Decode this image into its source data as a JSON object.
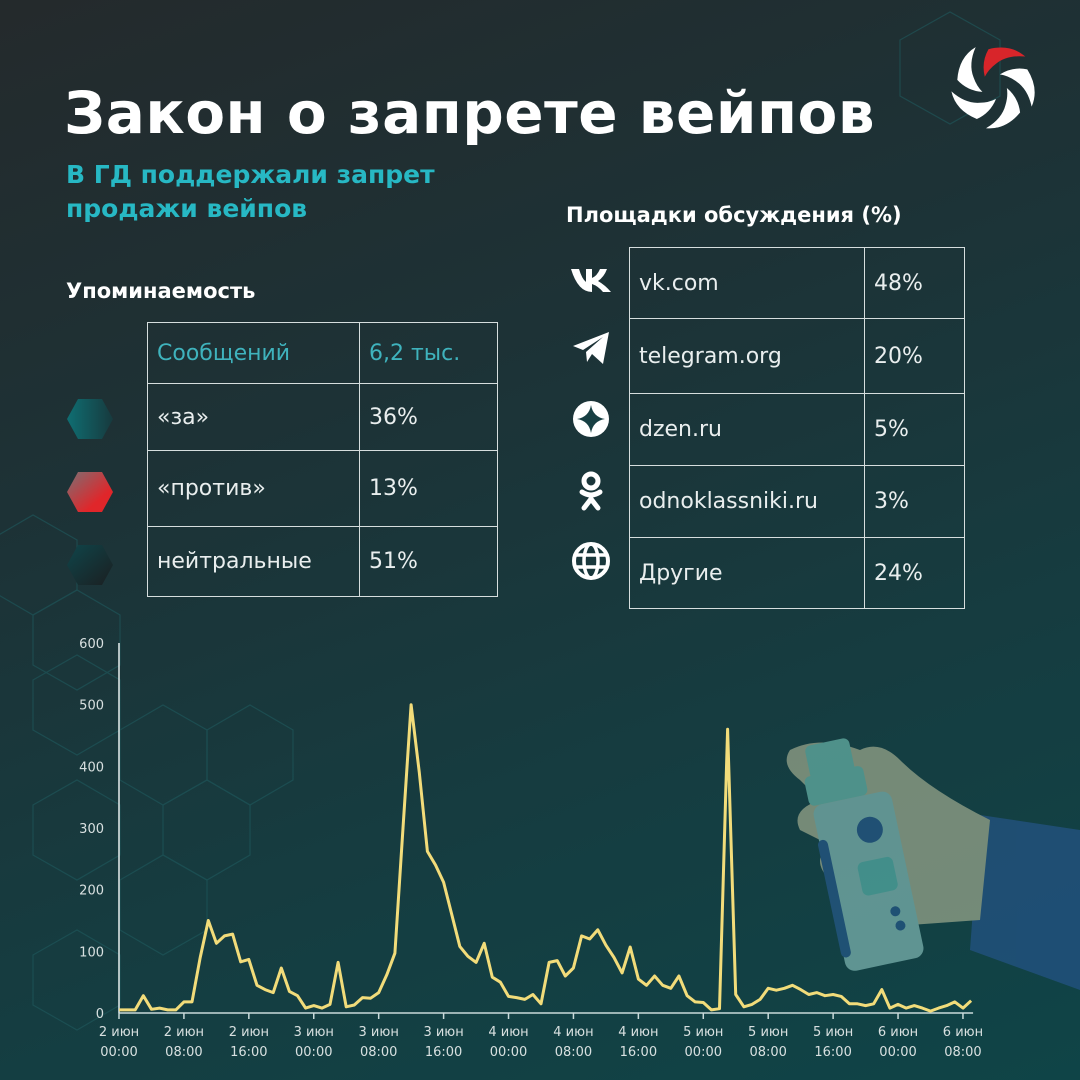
{
  "header": {
    "title": "Закон о запрете вейпов",
    "subtitle": "В ГД поддержали запрет продажи вейпов"
  },
  "colors": {
    "accent_teal": "#27b8c4",
    "line_yellow": "#f2dc7a",
    "logo_red": "#d8252a",
    "pro_hex": "#0f6a6f",
    "contra_hex": "#e0262a",
    "neutral_hex": "#153a3e"
  },
  "mentions": {
    "heading": "Упоминаемость",
    "header_row": {
      "label": "Сообщений",
      "value": "6,2 тыс."
    },
    "rows": [
      {
        "label": "«за»",
        "value": "36%",
        "icon": "teal-hexagon-icon"
      },
      {
        "label": "«против»",
        "value": "13%",
        "icon": "red-hexagon-icon"
      },
      {
        "label": "нейтральные",
        "value": "51%",
        "icon": "dark-hexagon-icon"
      }
    ]
  },
  "platforms": {
    "heading": "Площадки обсуждения (%)",
    "rows": [
      {
        "icon": "vk-icon",
        "label": "vk.com",
        "value": "48%"
      },
      {
        "icon": "telegram-icon",
        "label": "telegram.org",
        "value": "20%"
      },
      {
        "icon": "dzen-icon",
        "label": "dzen.ru",
        "value": "5%"
      },
      {
        "icon": "odnoklassniki-icon",
        "label": "odnoklassniki.ru",
        "value": "3%"
      },
      {
        "icon": "globe-icon",
        "label": "Другие",
        "value": "24%"
      }
    ]
  },
  "chart_data": {
    "type": "line",
    "title": "",
    "xlabel": "",
    "ylabel": "",
    "ylim": [
      0,
      600
    ],
    "yticks": [
      0,
      100,
      200,
      300,
      400,
      500,
      600
    ],
    "xtick_labels": [
      [
        "2 июн",
        "00:00"
      ],
      [
        "2 июн",
        "08:00"
      ],
      [
        "2 июн",
        "16:00"
      ],
      [
        "3 июн",
        "00:00"
      ],
      [
        "3 июн",
        "08:00"
      ],
      [
        "3 июн",
        "16:00"
      ],
      [
        "4 июн",
        "00:00"
      ],
      [
        "4 июн",
        "08:00"
      ],
      [
        "4 июн",
        "16:00"
      ],
      [
        "5 июн",
        "00:00"
      ],
      [
        "5 июн",
        "08:00"
      ],
      [
        "5 июн",
        "16:00"
      ],
      [
        "6 июн",
        "00:00"
      ],
      [
        "6 июн",
        "08:00"
      ]
    ],
    "x_step": "1 hour",
    "x_start": "2 июн 00:00",
    "grid": false,
    "legend": "none",
    "series": [
      {
        "name": "Сообщения",
        "values": [
          5,
          5,
          5,
          28,
          6,
          8,
          5,
          5,
          18,
          18,
          90,
          150,
          113,
          125,
          128,
          83,
          87,
          45,
          38,
          33,
          73,
          35,
          28,
          8,
          12,
          8,
          14,
          82,
          10,
          13,
          25,
          24,
          33,
          62,
          97,
          300,
          500,
          390,
          262,
          240,
          212,
          160,
          108,
          92,
          82,
          113,
          58,
          50,
          27,
          25,
          22,
          30,
          15,
          82,
          85,
          60,
          73,
          125,
          120,
          135,
          110,
          90,
          65,
          107,
          55,
          45,
          60,
          45,
          40,
          60,
          28,
          18,
          17,
          5,
          7,
          460,
          30,
          10,
          14,
          22,
          40,
          37,
          40,
          45,
          38,
          30,
          33,
          28,
          30,
          27,
          15,
          15,
          12,
          15,
          38,
          8,
          14,
          8,
          12,
          8,
          3,
          8,
          12,
          18,
          8,
          20
        ]
      }
    ]
  }
}
